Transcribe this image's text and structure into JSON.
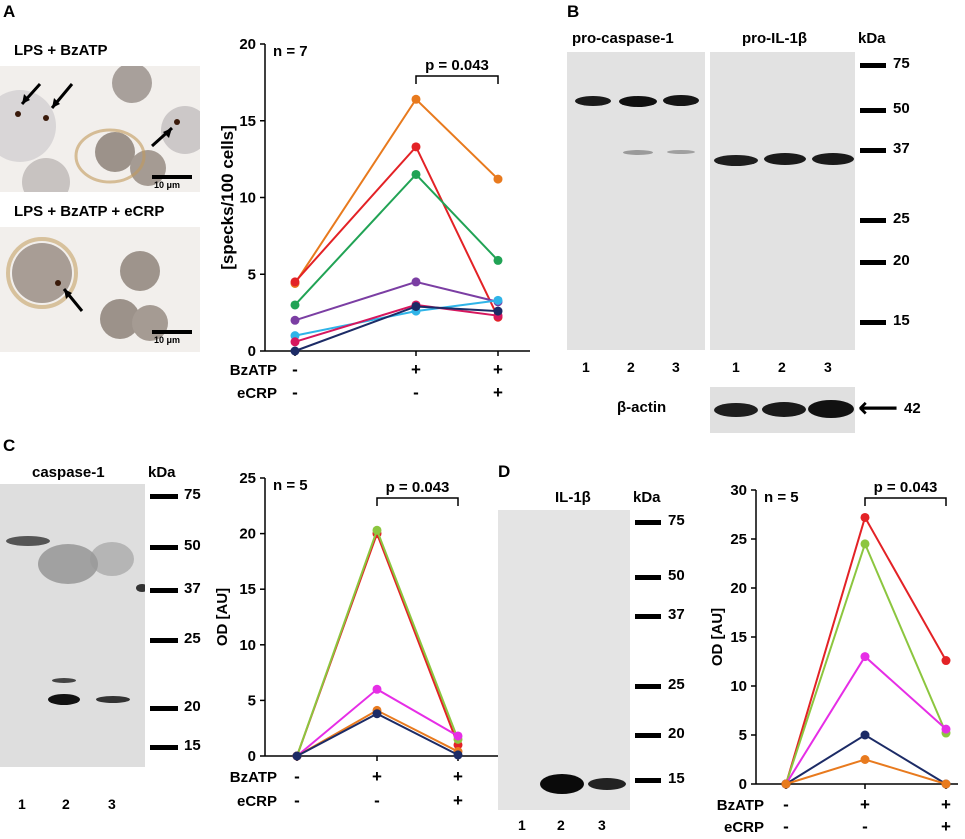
{
  "panels": {
    "A": {
      "letter": "A",
      "image_top_label": "LPS + BzATP",
      "image_bottom_label": "LPS + BzATP + eCRP",
      "scalebar_label": "10 μm",
      "chart_data": {
        "type": "line",
        "ylabel": "[specks/100 cells]",
        "ylim": [
          0,
          20
        ],
        "yticks": [
          0,
          5,
          10,
          15,
          20
        ],
        "n_label": "n = 7",
        "p_label": "p = 0.043",
        "rows": [
          {
            "name": "BzATP",
            "values": [
              "-",
              "+",
              "+"
            ]
          },
          {
            "name": "eCRP",
            "values": [
              "-",
              "-",
              "+"
            ]
          }
        ],
        "series": [
          {
            "color": "#e87a1e",
            "values": [
              4.4,
              16.4,
              11.2
            ]
          },
          {
            "color": "#e32226",
            "values": [
              4.5,
              13.3,
              2.2
            ]
          },
          {
            "color": "#21a355",
            "values": [
              3.0,
              11.5,
              5.9
            ]
          },
          {
            "color": "#7b3ea3",
            "values": [
              2.0,
              4.5,
              3.2
            ]
          },
          {
            "color": "#2fb4e8",
            "values": [
              1.0,
              2.6,
              3.3
            ]
          },
          {
            "color": "#d6175e",
            "values": [
              0.6,
              3.0,
              2.3
            ]
          },
          {
            "color": "#1c2b66",
            "values": [
              0.0,
              2.9,
              2.6
            ]
          }
        ]
      }
    },
    "B": {
      "letter": "B",
      "blot1_title": "pro-caspase-1",
      "blot2_title": "pro-IL-1β",
      "kda_label": "kDa",
      "markers": [
        "75",
        "50",
        "37",
        "25",
        "20",
        "15"
      ],
      "lanes": [
        "1",
        "2",
        "3"
      ],
      "actin_label": "β-actin",
      "actin_arrow": "⟵",
      "actin_kda": "42"
    },
    "C": {
      "letter": "C",
      "blot_title": "caspase-1",
      "kda_label": "kDa",
      "markers": [
        "75",
        "50",
        "37",
        "25",
        "20",
        "15"
      ],
      "lanes": [
        "1",
        "2",
        "3"
      ],
      "chart_data": {
        "type": "line",
        "ylabel": "OD [AU]",
        "ylim": [
          0,
          25
        ],
        "yticks": [
          0,
          5,
          10,
          15,
          20,
          25
        ],
        "n_label": "n = 5",
        "p_label": "p = 0.043",
        "rows": [
          {
            "name": "BzATP",
            "values": [
              "-",
              "+",
              "+"
            ]
          },
          {
            "name": "eCRP",
            "values": [
              "-",
              "-",
              "+"
            ]
          }
        ],
        "series": [
          {
            "color": "#e32226",
            "values": [
              0,
              20.0,
              1.0
            ]
          },
          {
            "color": "#8cc63f",
            "values": [
              0,
              20.3,
              1.5
            ]
          },
          {
            "color": "#e62ee6",
            "values": [
              0,
              6.0,
              1.8
            ]
          },
          {
            "color": "#e87a1e",
            "values": [
              0,
              4.1,
              0.4
            ]
          },
          {
            "color": "#1c2b66",
            "values": [
              0,
              3.8,
              0.1
            ]
          }
        ]
      }
    },
    "D": {
      "letter": "D",
      "blot_title": "IL-1β",
      "kda_label": "kDa",
      "markers": [
        "75",
        "50",
        "37",
        "25",
        "20",
        "15"
      ],
      "lanes": [
        "1",
        "2",
        "3"
      ],
      "chart_data": {
        "type": "line",
        "ylabel": "OD [AU]",
        "ylim": [
          0,
          30
        ],
        "yticks": [
          0,
          5,
          10,
          15,
          20,
          25,
          30
        ],
        "n_label": "n = 5",
        "p_label": "p = 0.043",
        "rows": [
          {
            "name": "BzATP",
            "values": [
              "-",
              "+",
              "+"
            ]
          },
          {
            "name": "eCRP",
            "values": [
              "-",
              "-",
              "+"
            ]
          }
        ],
        "series": [
          {
            "color": "#e32226",
            "values": [
              0,
              27.2,
              12.6
            ]
          },
          {
            "color": "#8cc63f",
            "values": [
              0,
              24.5,
              5.2
            ]
          },
          {
            "color": "#e62ee6",
            "values": [
              0,
              13.0,
              5.6
            ]
          },
          {
            "color": "#1c2b66",
            "values": [
              0,
              5.0,
              0.0
            ]
          },
          {
            "color": "#e87a1e",
            "values": [
              0,
              2.5,
              0.0
            ]
          }
        ]
      }
    }
  }
}
